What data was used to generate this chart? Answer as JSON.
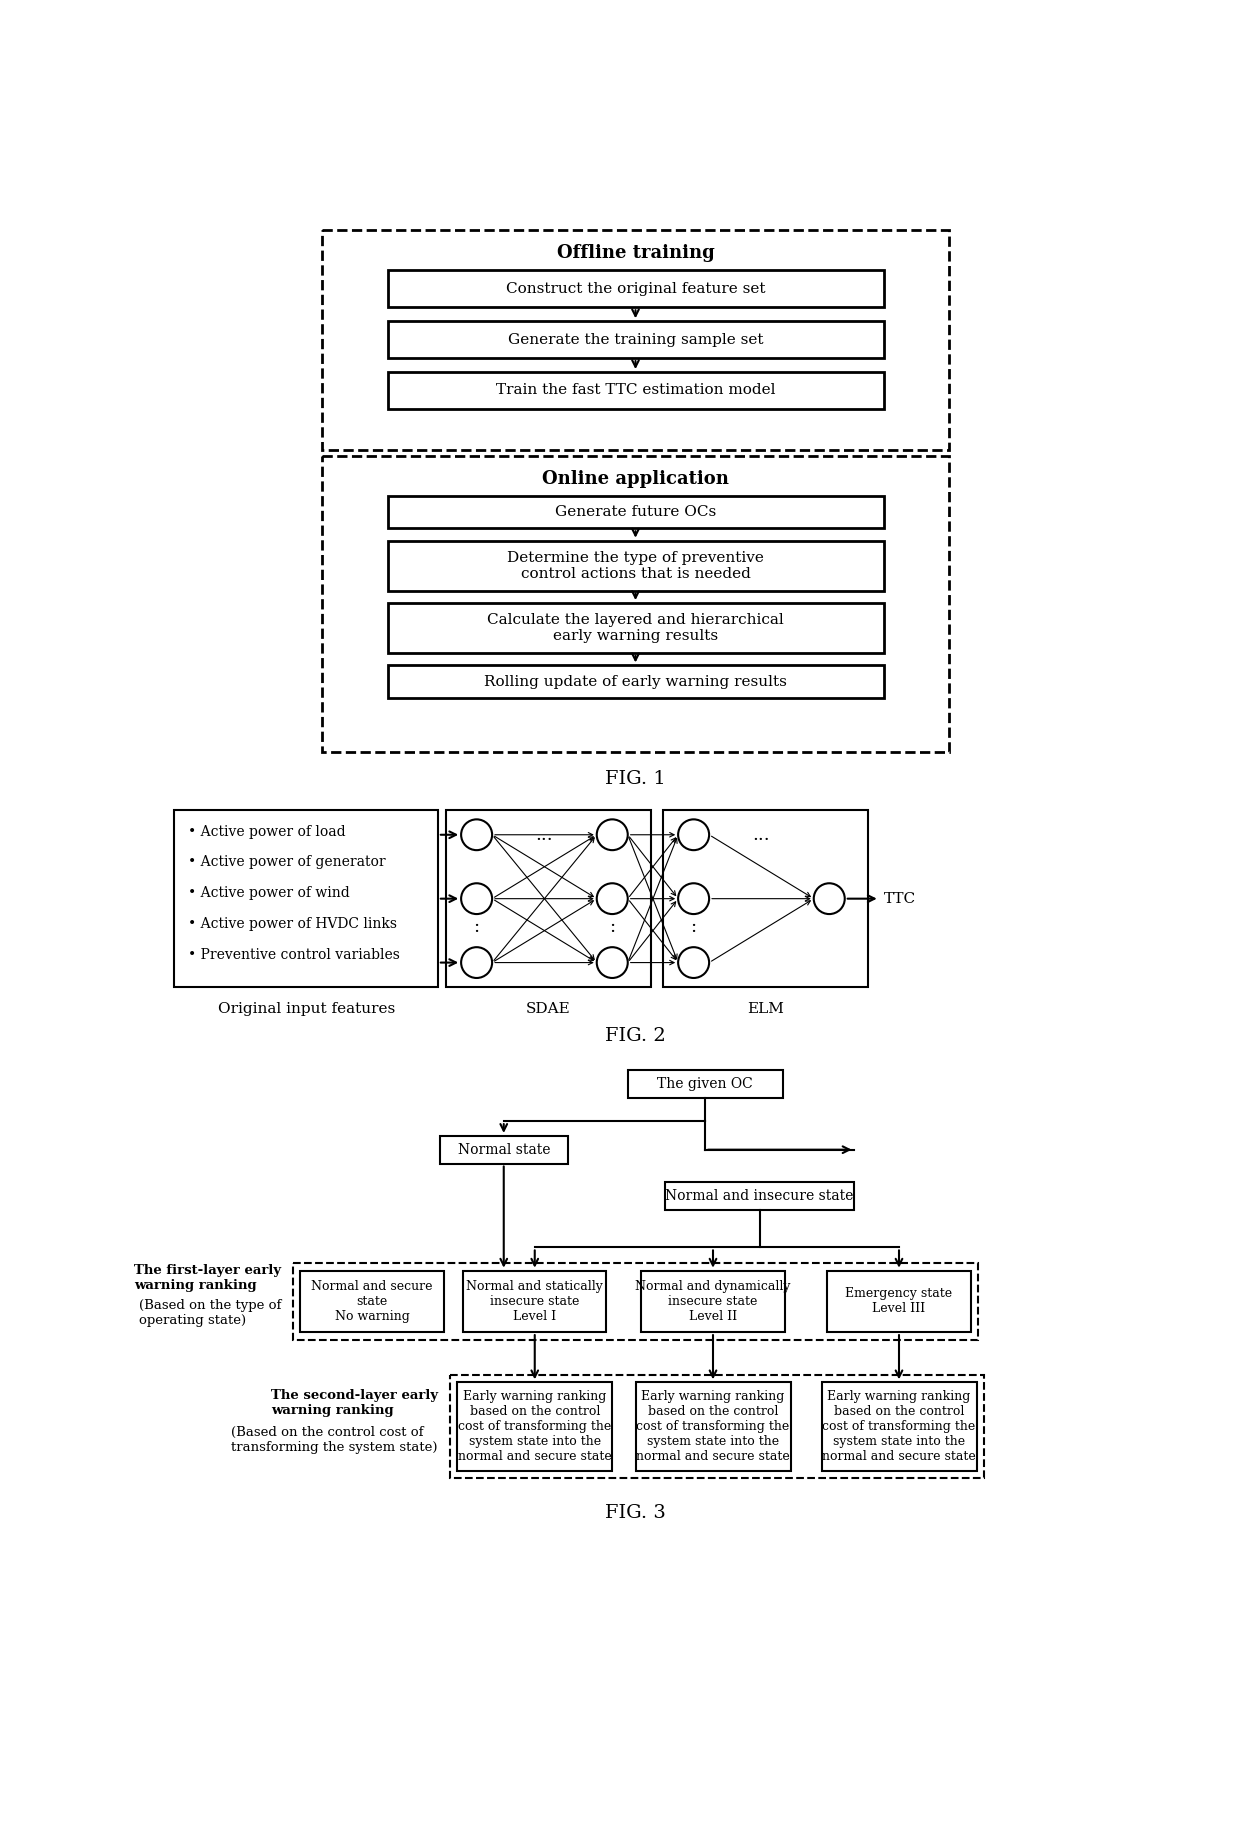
{
  "fig1": {
    "title": "FIG. 1",
    "offline_label": "Offline training",
    "online_label": "Online application",
    "offline_boxes": [
      "Construct the original feature set",
      "Generate the training sample set",
      "Train the fast TTC estimation model"
    ],
    "online_boxes": [
      "Generate future OCs",
      "Determine the type of preventive\ncontrol actions that is needed",
      "Calculate the layered and hierarchical\nearly warning results",
      "Rolling update of early warning results"
    ]
  },
  "fig2": {
    "title": "FIG. 2",
    "features": [
      "• Active power of load",
      "• Active power of generator",
      "• Active power of wind",
      "• Active power of HVDC links",
      "• Preventive control variables"
    ],
    "label_features": "Original input features",
    "label_sdae": "SDAE",
    "label_elm": "ELM",
    "label_output": "TTC"
  },
  "fig3": {
    "title": "FIG. 3",
    "root": "The given OC",
    "node1": "Normal state",
    "node2": "Normal and insecure state",
    "first_layer_label_line1": "The first-layer early",
    "first_layer_label_line2": "warning ranking",
    "first_layer_label_line3": "(Based on the type of",
    "first_layer_label_line4": "operating state)",
    "second_layer_label_line1": "The second-layer early",
    "second_layer_label_line2": "warning ranking",
    "second_layer_label_line3": "(Based on the control cost of",
    "second_layer_label_line4": "transforming the system state)",
    "boxes_row1": [
      "Normal and secure\nstate\nNo warning",
      "Normal and statically\ninsecure state\nLevel I",
      "Normal and dynamically\ninsecure state\nLevel II",
      "Emergency state\nLevel III"
    ],
    "boxes_row2": [
      "Early warning ranking\nbased on the control\ncost of transforming the\nsystem state into the\nnormal and secure state",
      "Early warning ranking\nbased on the control\ncost of transforming the\nsystem state into the\nnormal and secure state",
      "Early warning ranking\nbased on the control\ncost of transforming the\nsystem state into the\nnormal and secure state"
    ]
  }
}
